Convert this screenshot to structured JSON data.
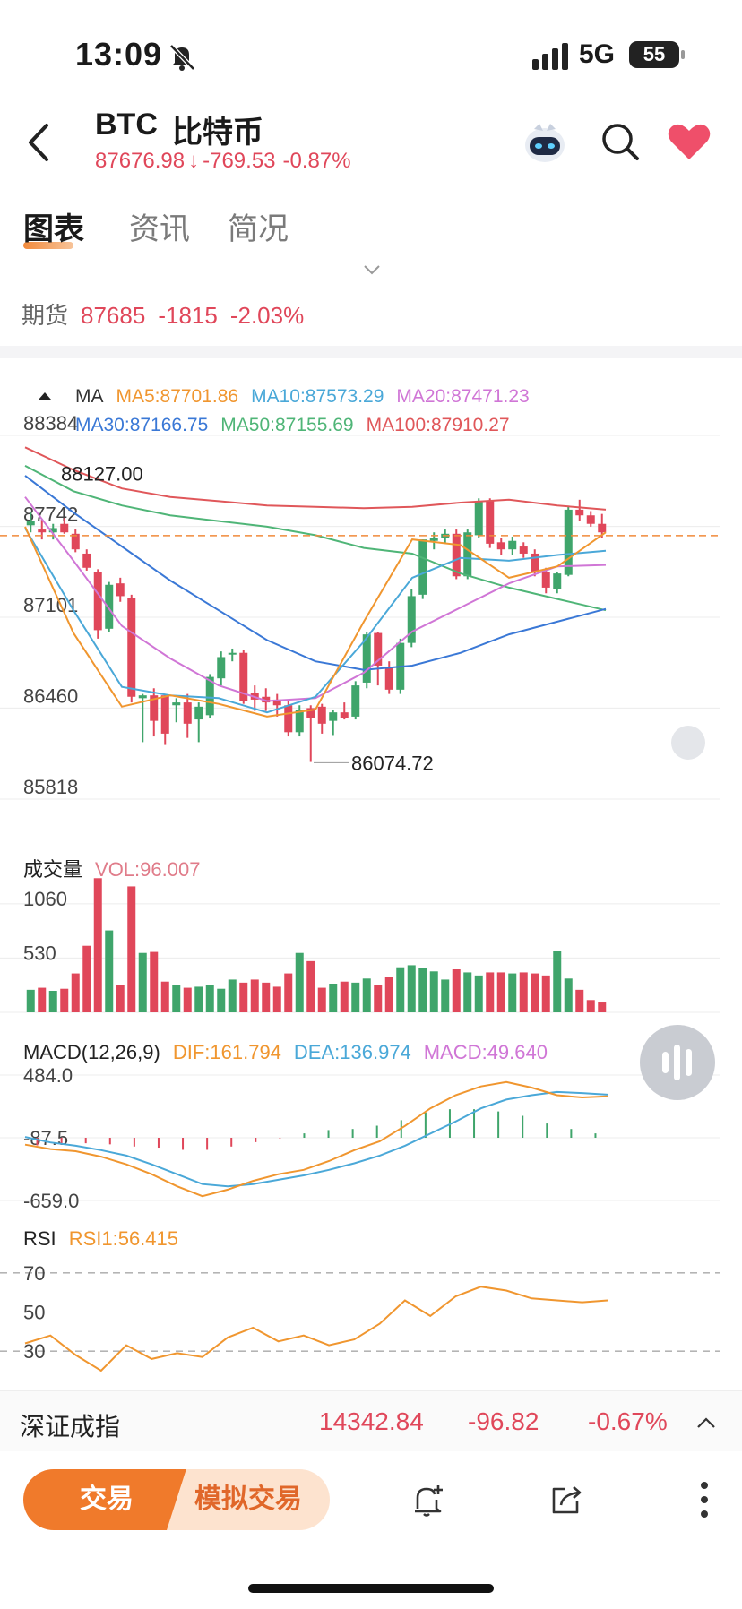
{
  "status_bar": {
    "time": "13:09",
    "network": "5G",
    "battery": "55"
  },
  "header": {
    "symbol": "BTC",
    "name": "比特币",
    "price": "87676.98",
    "change": "-769.53",
    "change_pct": "-0.87%",
    "down_arrow": "↓"
  },
  "tabs": [
    {
      "label": "图表",
      "active": true
    },
    {
      "label": "资讯",
      "active": false
    },
    {
      "label": "简况",
      "active": false
    }
  ],
  "futures": {
    "label": "期货",
    "price": "87685",
    "change": "-1815",
    "change_pct": "-2.03%"
  },
  "ma_legend": {
    "title": "MA",
    "ma5": "MA5:87701.86",
    "ma10": "MA10:87573.29",
    "ma20": "MA20:87471.23",
    "ma30": "MA30:87166.75",
    "ma50": "MA50:87155.69",
    "ma100": "MA100:87910.27"
  },
  "colors": {
    "up": "#3fa56b",
    "down": "#e0475a",
    "ma5": "#f0962f",
    "ma10": "#4aa8d8",
    "ma20": "#d076d6",
    "ma30": "#3a78d6",
    "ma50": "#4fb577",
    "ma100": "#e0575a"
  },
  "volume_legend": {
    "title": "成交量",
    "vol": "VOL:96.007"
  },
  "macd_legend": {
    "title": "MACD(12,26,9)",
    "dif": "DIF:161.794",
    "dea": "DEA:136.974",
    "macd": "MACD:49.640"
  },
  "rsi_legend": {
    "title": "RSI",
    "rsi1": "RSI1:56.415"
  },
  "index_bar": {
    "name": "深证成指",
    "value": "14342.84",
    "change": "-96.82",
    "change_pct": "-0.67%"
  },
  "bottom_bar": {
    "trade": "交易",
    "sim_trade": "模拟交易"
  },
  "chart_data": {
    "type": "candlestick",
    "price_axis": {
      "ticks": [
        "88384",
        "87742",
        "87101",
        "86460",
        "85818"
      ],
      "ylim": [
        85818,
        88384
      ]
    },
    "last_price": 87676.98,
    "high_label": "88127.00",
    "low_label": "86074.72",
    "candles": [
      {
        "o": 87750,
        "h": 87840,
        "l": 87700,
        "c": 87780
      },
      {
        "o": 87720,
        "h": 87790,
        "l": 87650,
        "c": 87700
      },
      {
        "o": 87700,
        "h": 87760,
        "l": 87650,
        "c": 87730
      },
      {
        "o": 87760,
        "h": 87800,
        "l": 87690,
        "c": 87700
      },
      {
        "o": 87690,
        "h": 87720,
        "l": 87560,
        "c": 87580
      },
      {
        "o": 87550,
        "h": 87580,
        "l": 87430,
        "c": 87450
      },
      {
        "o": 87420,
        "h": 87440,
        "l": 86950,
        "c": 87010
      },
      {
        "o": 87020,
        "h": 87350,
        "l": 87000,
        "c": 87330
      },
      {
        "o": 87340,
        "h": 87380,
        "l": 87210,
        "c": 87250
      },
      {
        "o": 87240,
        "h": 87260,
        "l": 86500,
        "c": 86540
      },
      {
        "o": 86530,
        "h": 86560,
        "l": 86220,
        "c": 86550
      },
      {
        "o": 86550,
        "h": 86600,
        "l": 86260,
        "c": 86370
      },
      {
        "o": 86550,
        "h": 86560,
        "l": 86200,
        "c": 86280
      },
      {
        "o": 86480,
        "h": 86530,
        "l": 86360,
        "c": 86500
      },
      {
        "o": 86500,
        "h": 86560,
        "l": 86250,
        "c": 86350
      },
      {
        "o": 86380,
        "h": 86500,
        "l": 86220,
        "c": 86470
      },
      {
        "o": 86410,
        "h": 86700,
        "l": 86390,
        "c": 86680
      },
      {
        "o": 86670,
        "h": 86860,
        "l": 86620,
        "c": 86820
      },
      {
        "o": 86840,
        "h": 86880,
        "l": 86790,
        "c": 86850
      },
      {
        "o": 86850,
        "h": 86870,
        "l": 86490,
        "c": 86510
      },
      {
        "o": 86570,
        "h": 86620,
        "l": 86440,
        "c": 86520
      },
      {
        "o": 86540,
        "h": 86600,
        "l": 86440,
        "c": 86500
      },
      {
        "o": 86520,
        "h": 86560,
        "l": 86400,
        "c": 86480
      },
      {
        "o": 86480,
        "h": 86510,
        "l": 86260,
        "c": 86290
      },
      {
        "o": 86290,
        "h": 86480,
        "l": 86260,
        "c": 86450
      },
      {
        "o": 86460,
        "h": 86480,
        "l": 86080,
        "c": 86390
      },
      {
        "o": 86470,
        "h": 86490,
        "l": 86280,
        "c": 86350
      },
      {
        "o": 86370,
        "h": 86450,
        "l": 86270,
        "c": 86430
      },
      {
        "o": 86430,
        "h": 86500,
        "l": 86380,
        "c": 86390
      },
      {
        "o": 86400,
        "h": 86650,
        "l": 86380,
        "c": 86620
      },
      {
        "o": 86640,
        "h": 87000,
        "l": 86600,
        "c": 86980
      },
      {
        "o": 86990,
        "h": 87000,
        "l": 86620,
        "c": 86760
      },
      {
        "o": 86750,
        "h": 86790,
        "l": 86560,
        "c": 86590
      },
      {
        "o": 86590,
        "h": 86950,
        "l": 86560,
        "c": 86920
      },
      {
        "o": 86920,
        "h": 87300,
        "l": 86890,
        "c": 87250
      },
      {
        "o": 87260,
        "h": 87650,
        "l": 87230,
        "c": 87650
      },
      {
        "o": 87640,
        "h": 87700,
        "l": 87580,
        "c": 87660
      },
      {
        "o": 87660,
        "h": 87720,
        "l": 87620,
        "c": 87690
      },
      {
        "o": 87690,
        "h": 87720,
        "l": 87370,
        "c": 87390
      },
      {
        "o": 87390,
        "h": 87720,
        "l": 87370,
        "c": 87700
      },
      {
        "o": 87680,
        "h": 87940,
        "l": 87660,
        "c": 87920
      },
      {
        "o": 87920,
        "h": 87940,
        "l": 87590,
        "c": 87620
      },
      {
        "o": 87630,
        "h": 87660,
        "l": 87540,
        "c": 87580
      },
      {
        "o": 87580,
        "h": 87670,
        "l": 87540,
        "c": 87640
      },
      {
        "o": 87600,
        "h": 87630,
        "l": 87520,
        "c": 87550
      },
      {
        "o": 87550,
        "h": 87580,
        "l": 87390,
        "c": 87420
      },
      {
        "o": 87420,
        "h": 87450,
        "l": 87270,
        "c": 87310
      },
      {
        "o": 87300,
        "h": 87420,
        "l": 87270,
        "c": 87410
      },
      {
        "o": 87400,
        "h": 87880,
        "l": 87390,
        "c": 87860
      },
      {
        "o": 87860,
        "h": 87930,
        "l": 87780,
        "c": 87820
      },
      {
        "o": 87820,
        "h": 87850,
        "l": 87740,
        "c": 87760
      },
      {
        "o": 87760,
        "h": 87830,
        "l": 87660,
        "c": 87700
      }
    ],
    "ma_series": {
      "ma100": [
        88300,
        88140,
        88010,
        87950,
        87920,
        87890,
        87880,
        87870,
        87880,
        87910,
        87930,
        87890,
        87860
      ],
      "ma50": [
        88170,
        87990,
        87890,
        87820,
        87780,
        87740,
        87680,
        87590,
        87550,
        87410,
        87310,
        87230,
        87150
      ],
      "ma30": [
        88100,
        87840,
        87600,
        87360,
        87150,
        86940,
        86790,
        86730,
        86760,
        86850,
        86980,
        87070,
        87160
      ],
      "ma20": [
        87950,
        87500,
        87040,
        86810,
        86620,
        86510,
        86530,
        86710,
        87000,
        87170,
        87340,
        87460,
        87470
      ],
      "ma10": [
        87730,
        87150,
        86610,
        86550,
        86530,
        86430,
        86540,
        86930,
        87380,
        87520,
        87500,
        87540,
        87570
      ],
      "ma5": [
        87740,
        86990,
        86470,
        86550,
        86490,
        86400,
        86450,
        87070,
        87650,
        87610,
        87380,
        87460,
        87700
      ]
    },
    "volume": {
      "ticks": [
        "1060",
        "530"
      ],
      "values": [
        220,
        240,
        210,
        230,
        380,
        650,
        1310,
        800,
        270,
        1230,
        580,
        590,
        300,
        270,
        240,
        250,
        270,
        230,
        320,
        290,
        320,
        290,
        250,
        380,
        580,
        500,
        240,
        280,
        300,
        290,
        330,
        270,
        350,
        440,
        460,
        430,
        400,
        320,
        420,
        390,
        360,
        390,
        390,
        380,
        390,
        380,
        360,
        600,
        330,
        220,
        120,
        96
      ]
    },
    "macd": {
      "ticks": [
        "484.0",
        "-87.5",
        "-659.0"
      ],
      "dif": [
        -150,
        -190,
        -210,
        -260,
        -330,
        -420,
        -530,
        -620,
        -560,
        -480,
        -420,
        -380,
        -300,
        -200,
        -120,
        20,
        180,
        300,
        380,
        420,
        370,
        300,
        280,
        290
      ],
      "dea": [
        -80,
        -130,
        -160,
        -200,
        -250,
        -330,
        -420,
        -510,
        -530,
        -510,
        -470,
        -430,
        -380,
        -320,
        -250,
        -160,
        -50,
        60,
        180,
        260,
        300,
        330,
        320,
        305
      ],
      "hist": [
        -70,
        -60,
        -50,
        -60,
        -80,
        -90,
        -110,
        -110,
        -80,
        -40,
        -5,
        40,
        70,
        80,
        110,
        160,
        230,
        260,
        260,
        240,
        200,
        130,
        80,
        40
      ]
    },
    "rsi": {
      "ticks": [
        "70",
        "50",
        "30"
      ],
      "values": [
        34,
        38,
        28,
        20,
        33,
        26,
        29,
        27,
        37,
        42,
        35,
        38,
        33,
        36,
        44,
        56,
        48,
        58,
        63,
        61,
        57,
        56,
        55,
        56
      ]
    }
  }
}
